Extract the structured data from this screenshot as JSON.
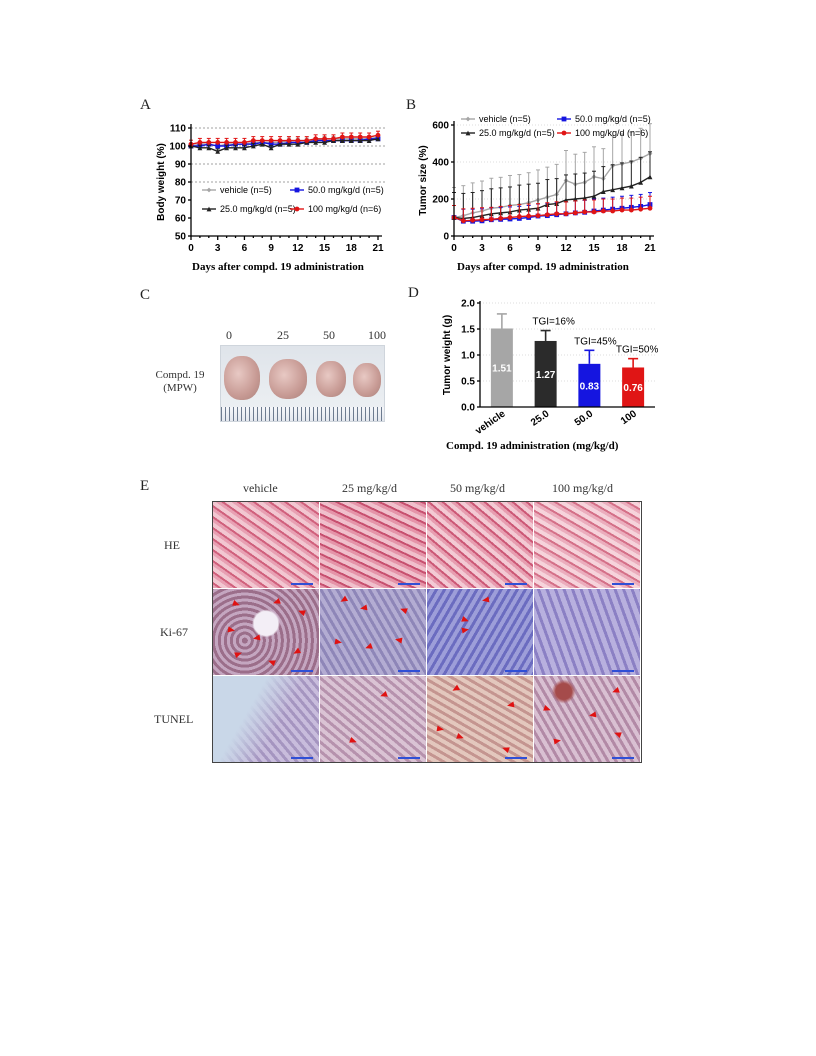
{
  "panels": {
    "A": "A",
    "B": "B",
    "C": "C",
    "D": "D",
    "E": "E"
  },
  "colors": {
    "vehicle": "#a6a6a6",
    "low": "#222222",
    "mid": "#1515e0",
    "high": "#e01515"
  },
  "chart_data": [
    {
      "id": "A",
      "type": "line",
      "ylabel": "Body weight (%)",
      "xlabel": "Days after compd. 19 administration",
      "xlim": [
        0,
        21
      ],
      "ylim": [
        50,
        110
      ],
      "xticks": [
        0,
        3,
        6,
        9,
        12,
        15,
        18,
        21
      ],
      "yticks": [
        50,
        60,
        70,
        80,
        90,
        100,
        110
      ],
      "reference_lines": [
        80,
        90,
        100,
        110
      ],
      "x": [
        0,
        1,
        2,
        3,
        4,
        5,
        6,
        7,
        8,
        9,
        10,
        11,
        12,
        13,
        14,
        15,
        16,
        17,
        18,
        19,
        20,
        21
      ],
      "series": [
        {
          "name": "vehicle (n=5)",
          "color": "#a6a6a6",
          "values": [
            100,
            101,
            101,
            100,
            101,
            101,
            101,
            102,
            102,
            102,
            102,
            103,
            103,
            103,
            103,
            104,
            104,
            104,
            104,
            104,
            104,
            105
          ]
        },
        {
          "name": "50.0 mg/kg/d (n=5)",
          "color": "#1515e0",
          "values": [
            100,
            100,
            101,
            100,
            100,
            101,
            101,
            101,
            102,
            101,
            101,
            102,
            102,
            102,
            103,
            103,
            103,
            103,
            103,
            103,
            104,
            104
          ]
        },
        {
          "name": "25.0 mg/kg/d (n=5)",
          "color": "#222222",
          "values": [
            100,
            99,
            99,
            97,
            99,
            99,
            99,
            100,
            101,
            99,
            101,
            101,
            101,
            102,
            102,
            102,
            103,
            103,
            103,
            103,
            103,
            104
          ]
        },
        {
          "name": "100 mg/kg/d (n=6)",
          "color": "#e01515",
          "values": [
            101,
            102,
            102,
            102,
            102,
            102,
            102,
            103,
            103,
            103,
            103,
            103,
            103,
            103,
            104,
            104,
            104,
            105,
            105,
            105,
            105,
            106
          ]
        }
      ]
    },
    {
      "id": "B",
      "type": "line",
      "ylabel": "Tumor size (%)",
      "xlabel": "Days after compd. 19 administration",
      "xlim": [
        0,
        21
      ],
      "ylim": [
        0,
        600
      ],
      "xticks": [
        0,
        3,
        6,
        9,
        12,
        15,
        18,
        21
      ],
      "yticks": [
        0,
        200,
        400,
        600
      ],
      "x": [
        0,
        1,
        2,
        3,
        4,
        5,
        6,
        7,
        8,
        9,
        10,
        11,
        12,
        13,
        14,
        15,
        16,
        17,
        18,
        19,
        20,
        21
      ],
      "series": [
        {
          "name": "vehicle (n=5)",
          "color": "#a6a6a6",
          "values": [
            100,
            110,
            125,
            135,
            150,
            155,
            165,
            170,
            180,
            195,
            210,
            225,
            300,
            280,
            290,
            320,
            310,
            380,
            390,
            400,
            420,
            445
          ]
        },
        {
          "name": "50.0 mg/kg/d (n=5)",
          "color": "#1515e0",
          "values": [
            100,
            80,
            80,
            82,
            88,
            90,
            92,
            95,
            100,
            108,
            110,
            115,
            120,
            125,
            128,
            135,
            140,
            145,
            150,
            155,
            160,
            170
          ]
        },
        {
          "name": "25.0 mg/kg/d (n=5)",
          "color": "#222222",
          "values": [
            100,
            95,
            100,
            110,
            120,
            125,
            130,
            140,
            145,
            150,
            170,
            175,
            195,
            200,
            205,
            215,
            240,
            250,
            260,
            270,
            290,
            320
          ]
        },
        {
          "name": "100 mg/kg/d (n=6)",
          "color": "#e01515",
          "values": [
            100,
            82,
            85,
            88,
            90,
            95,
            100,
            105,
            108,
            110,
            115,
            120,
            120,
            125,
            130,
            130,
            135,
            135,
            140,
            140,
            145,
            150
          ]
        }
      ]
    },
    {
      "id": "D",
      "type": "bar",
      "ylabel": "Tumor weight (g)",
      "xlabel": "Compd. 19 administration (mg/kg/d)",
      "ylim": [
        0,
        2.0
      ],
      "yticks": [
        "0.0",
        "0.5",
        "1.0",
        "1.5",
        "2.0"
      ],
      "categories": [
        "vehicle",
        "25.0",
        "50.0",
        "100"
      ],
      "values": [
        1.51,
        1.27,
        0.83,
        0.76
      ],
      "errors": [
        0.28,
        0.2,
        0.26,
        0.17
      ],
      "value_labels": [
        "1.51",
        "1.27",
        "0.83",
        "0.76"
      ],
      "colors": [
        "#a6a6a6",
        "#2b2b2b",
        "#1515e0",
        "#e01515"
      ],
      "annotations": [
        "TGI=16%",
        "TGI=45%",
        "TGI=50%"
      ]
    }
  ],
  "panel_c": {
    "dose_labels": [
      "0",
      "25",
      "50",
      "100"
    ],
    "compd_label_line1": "Compd. 19",
    "compd_label_line2": "(MPW)"
  },
  "panel_e": {
    "columns": [
      "vehicle",
      "25 mg/kg/d",
      "50 mg/kg/d",
      "100 mg/kg/d"
    ],
    "rows": [
      "HE",
      "Ki-67",
      "TUNEL"
    ]
  }
}
